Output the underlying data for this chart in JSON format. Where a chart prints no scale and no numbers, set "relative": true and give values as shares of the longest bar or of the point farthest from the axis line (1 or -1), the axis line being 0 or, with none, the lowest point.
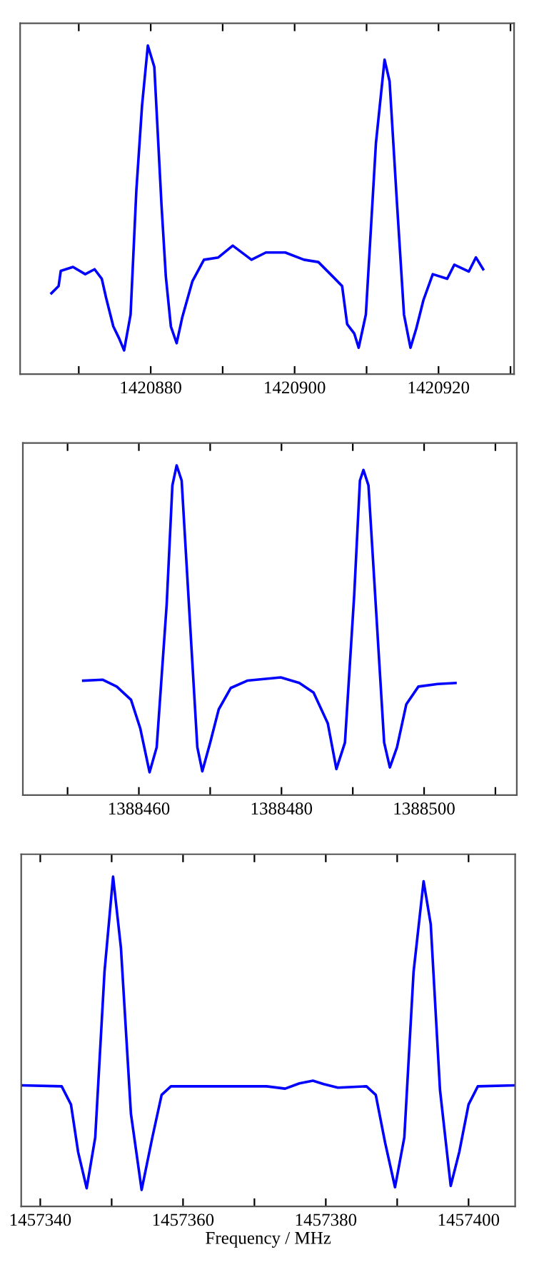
{
  "chart_data": [
    {
      "type": "line",
      "relative": true,
      "tick_labels": "x",
      "grid": false,
      "xlim": [
        1420861.85,
        1420930.5
      ],
      "xticks": [
        {
          "value": 1420870,
          "label": null
        },
        1420880,
        {
          "value": 1420890,
          "label": null
        },
        1420900,
        {
          "value": 1420910,
          "label": null
        },
        1420920,
        {
          "value": 1420930,
          "label": null
        }
      ],
      "series": [
        {
          "color": "#0000ff",
          "x": [
            1420866.2,
            1420867.2,
            1420867.5,
            1420869.2,
            1420870.9,
            1420872.2,
            1420873.2,
            1420873.8,
            1420874.8,
            1420875.6,
            1420876.3,
            1420877.2,
            1420878.0,
            1420878.8,
            1420879.6,
            1420880.5,
            1420881.5,
            1420882.1,
            1420882.8,
            1420883.6,
            1420884.4,
            1420885.8,
            1420887.4,
            1420889.4,
            1420891.4,
            1420894.0,
            1420896.0,
            1420898.7,
            1420901.3,
            1420903.3,
            1420905.3,
            1420906.6,
            1420907.3,
            1420908.3,
            1420908.9,
            1420909.9,
            1420911.3,
            1420912.5,
            1420913.2,
            1420914.2,
            1420915.2,
            1420916.1,
            1420916.9,
            1420917.9,
            1420919.2,
            1420921.2,
            1420922.2,
            1420924.2,
            1420925.2,
            1420926.2
          ],
          "values": [
            0.246,
            0.268,
            0.314,
            0.326,
            0.304,
            0.319,
            0.29,
            0.232,
            0.145,
            0.109,
            0.072,
            0.181,
            0.558,
            0.819,
            1.0,
            0.935,
            0.514,
            0.297,
            0.145,
            0.094,
            0.174,
            0.283,
            0.348,
            0.355,
            0.391,
            0.348,
            0.37,
            0.37,
            0.348,
            0.341,
            0.297,
            0.268,
            0.152,
            0.123,
            0.08,
            0.181,
            0.703,
            0.957,
            0.891,
            0.529,
            0.181,
            0.08,
            0.138,
            0.225,
            0.304,
            0.29,
            0.333,
            0.312,
            0.355,
            0.319
          ]
        }
      ]
    },
    {
      "type": "line",
      "relative": true,
      "tick_labels": "x",
      "grid": false,
      "xlim": [
        1388443.73,
        1388513.0
      ],
      "xticks": [
        {
          "value": 1388450,
          "label": null
        },
        1388460,
        {
          "value": 1388470,
          "label": null
        },
        1388480,
        {
          "value": 1388490,
          "label": null
        },
        1388500,
        {
          "value": 1388510,
          "label": null
        }
      ],
      "series": [
        {
          "color": "#0000ff",
          "x": [
            1388452.2,
            1388454.9,
            1388456.9,
            1388458.9,
            1388460.2,
            1388461.5,
            1388462.5,
            1388463.9,
            1388464.7,
            1388465.3,
            1388466.0,
            1388467.1,
            1388468.2,
            1388468.9,
            1388470.0,
            1388471.2,
            1388472.9,
            1388475.2,
            1388479.9,
            1388482.5,
            1388484.5,
            1388486.5,
            1388487.7,
            1388488.9,
            1388490.2,
            1388491.0,
            1388491.5,
            1388492.2,
            1388493.3,
            1388494.4,
            1388495.2,
            1388496.2,
            1388497.5,
            1388499.2,
            1388501.9,
            1388504.4
          ],
          "values": [
            0.347,
            0.35,
            0.329,
            0.289,
            0.202,
            0.069,
            0.145,
            0.578,
            0.939,
            1.0,
            0.954,
            0.549,
            0.145,
            0.072,
            0.159,
            0.26,
            0.325,
            0.347,
            0.357,
            0.34,
            0.311,
            0.217,
            0.079,
            0.159,
            0.607,
            0.954,
            0.986,
            0.939,
            0.549,
            0.159,
            0.084,
            0.145,
            0.275,
            0.329,
            0.337,
            0.34
          ]
        }
      ]
    },
    {
      "type": "line",
      "relative": true,
      "tick_labels": "x",
      "grid": false,
      "xlabel": "Frequency / MHz",
      "xlim": [
        1457337.33,
        1457406.53
      ],
      "xticks": [
        1457340,
        {
          "value": 1457350,
          "label": null
        },
        1457360,
        {
          "value": 1457370,
          "label": null
        },
        1457380,
        {
          "value": 1457390,
          "label": null
        },
        1457400
      ],
      "series": [
        {
          "color": "#0000ff",
          "x": [
            1457337.4,
            1457343.0,
            1457344.3,
            1457345.3,
            1457346.5,
            1457347.7,
            1457349.0,
            1457350.2,
            1457351.3,
            1457352.7,
            1457354.2,
            1457355.7,
            1457357.0,
            1457358.3,
            1457371.7,
            1457374.3,
            1457376.3,
            1457378.2,
            1457379.7,
            1457381.7,
            1457385.7,
            1457387.0,
            1457388.3,
            1457389.7,
            1457391.0,
            1457392.3,
            1457393.7,
            1457394.7,
            1457396.0,
            1457397.5,
            1457398.7,
            1457400.0,
            1457401.3,
            1457406.5
          ],
          "values": [
            0.367,
            0.364,
            0.309,
            0.165,
            0.055,
            0.209,
            0.712,
            1.0,
            0.784,
            0.281,
            0.05,
            0.209,
            0.338,
            0.364,
            0.364,
            0.357,
            0.373,
            0.381,
            0.371,
            0.36,
            0.364,
            0.338,
            0.194,
            0.058,
            0.209,
            0.712,
            0.986,
            0.856,
            0.353,
            0.062,
            0.165,
            0.309,
            0.364,
            0.367
          ]
        }
      ]
    }
  ]
}
